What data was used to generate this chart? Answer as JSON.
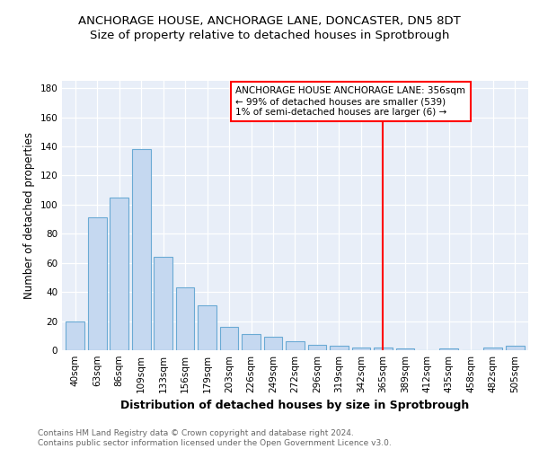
{
  "title": "ANCHORAGE HOUSE, ANCHORAGE LANE, DONCASTER, DN5 8DT",
  "subtitle": "Size of property relative to detached houses in Sprotbrough",
  "xlabel": "Distribution of detached houses by size in Sprotbrough",
  "ylabel": "Number of detached properties",
  "categories": [
    "40sqm",
    "63sqm",
    "86sqm",
    "109sqm",
    "133sqm",
    "156sqm",
    "179sqm",
    "203sqm",
    "226sqm",
    "249sqm",
    "272sqm",
    "296sqm",
    "319sqm",
    "342sqm",
    "365sqm",
    "389sqm",
    "412sqm",
    "435sqm",
    "458sqm",
    "482sqm",
    "505sqm"
  ],
  "values": [
    20,
    91,
    105,
    138,
    64,
    43,
    31,
    16,
    11,
    9,
    6,
    4,
    3,
    2,
    2,
    1,
    0,
    1,
    0,
    2,
    3
  ],
  "bar_color": "#c5d8f0",
  "bar_edge_color": "#6aaad4",
  "bar_width": 0.85,
  "vline_x": 14,
  "vline_color": "red",
  "annotation_text": "ANCHORAGE HOUSE ANCHORAGE LANE: 356sqm\n← 99% of detached houses are smaller (539)\n1% of semi-detached houses are larger (6) →",
  "annotation_box_color": "white",
  "annotation_box_edge_color": "red",
  "ylim": [
    0,
    185
  ],
  "yticks": [
    0,
    20,
    40,
    60,
    80,
    100,
    120,
    140,
    160,
    180
  ],
  "background_color": "#e8eef8",
  "footer_text": "Contains HM Land Registry data © Crown copyright and database right 2024.\nContains public sector information licensed under the Open Government Licence v3.0.",
  "title_fontsize": 9.5,
  "subtitle_fontsize": 9.5,
  "xlabel_fontsize": 9,
  "ylabel_fontsize": 8.5,
  "tick_fontsize": 7.5,
  "annotation_fontsize": 7.5,
  "footer_fontsize": 6.5
}
